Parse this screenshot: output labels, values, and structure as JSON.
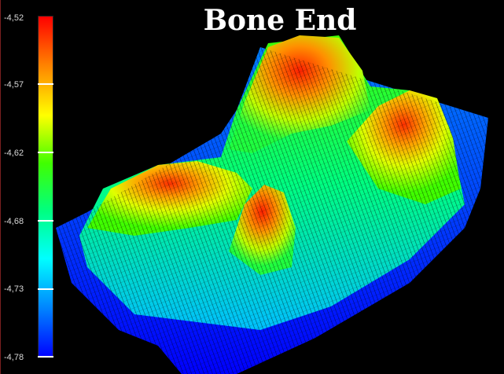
{
  "title": "Bone End",
  "colorbar": {
    "tick_labels": [
      "-4,52",
      "-4,57",
      "-4,62",
      "-4,68",
      "-4,73",
      "-4,78"
    ],
    "range": [
      -4.78,
      -4.52
    ],
    "colormap": [
      "#0000ff",
      "#0080ff",
      "#00ffff",
      "#00ff80",
      "#40ff00",
      "#ffff00",
      "#ff8000",
      "#ff0000"
    ]
  },
  "colors": {
    "background": "#000000",
    "title_text": "#ffffff"
  }
}
